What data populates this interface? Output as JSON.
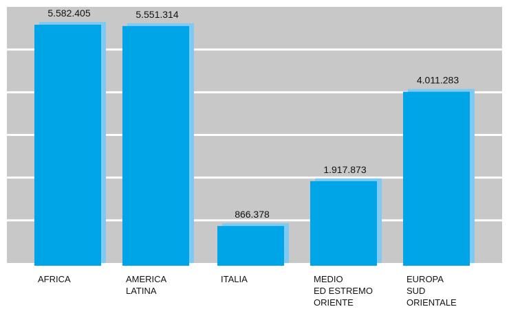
{
  "chart_data": {
    "type": "bar",
    "title": "",
    "xlabel": "",
    "ylabel": "",
    "categories": [
      [
        "AFRICA"
      ],
      [
        "AMERICA",
        "LATINA"
      ],
      [
        "ITALIA"
      ],
      [
        "MEDIO",
        "ED ESTREMO",
        "ORIENTE"
      ],
      [
        "EUROPA",
        "SUD",
        "ORIENTALE"
      ]
    ],
    "values": [
      5582405,
      5551314,
      866378,
      1917873,
      4011283
    ],
    "value_labels": [
      "5.582.405",
      "5.551.314",
      "866.378",
      "1.917.873",
      "4.011.283"
    ],
    "ylim": [
      0,
      6000000
    ],
    "grid": true,
    "colors": {
      "plot_background": "#c8c8c8",
      "gridline": "#ffffff",
      "bar": "#00a5e8",
      "bar_shadow": "#7fcaf2",
      "text": "#111111"
    }
  }
}
